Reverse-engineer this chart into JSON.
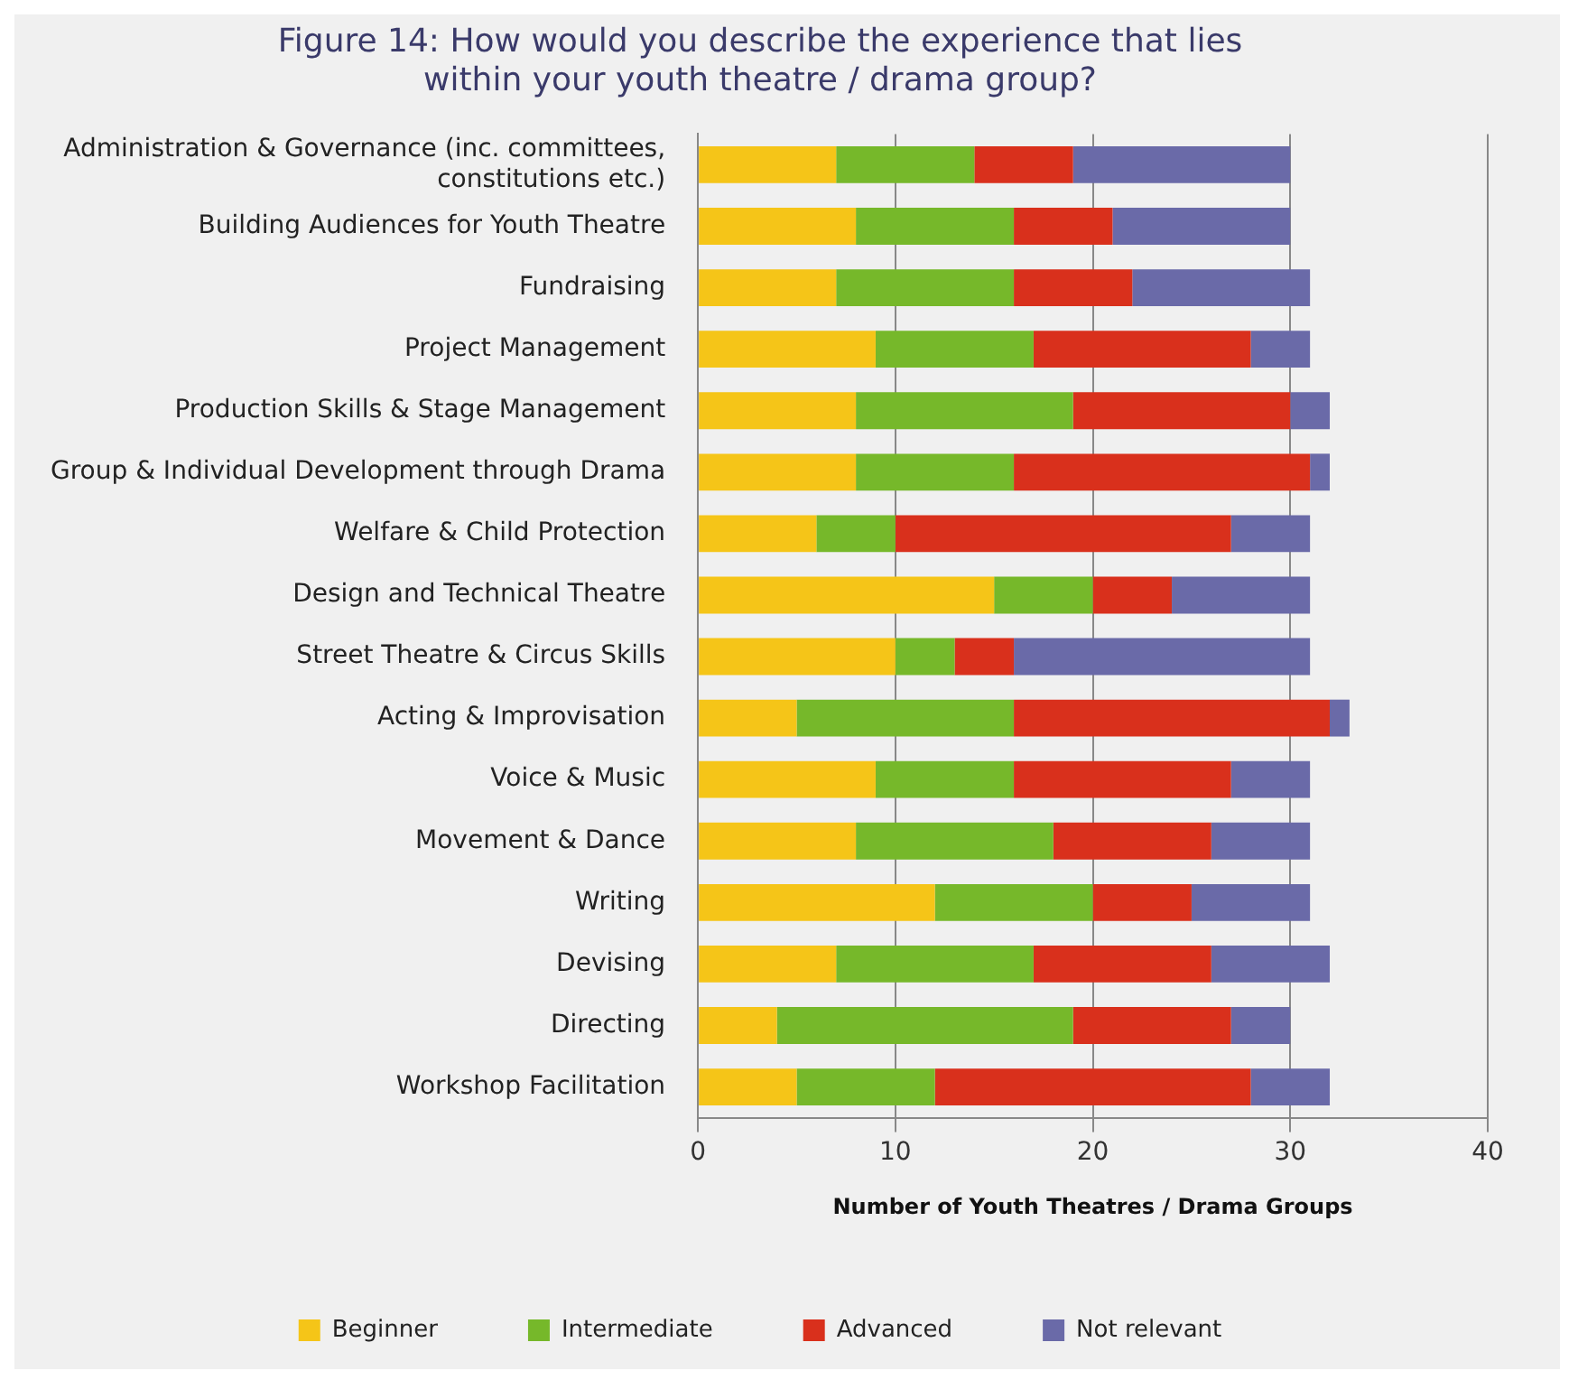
{
  "chart_data": {
    "type": "bar",
    "orientation": "horizontal",
    "stacked": true,
    "title": "Figure 14: How would you describe the experience that lies within your youth theatre / drama group?",
    "xlabel": "Number of Youth Theatres / Drama Groups",
    "categories": [
      "Administration & Governance (inc. committees, constitutions etc.)",
      "Building Audiences for Youth Theatre",
      "Fundraising",
      "Project Management",
      "Production Skills & Stage Management",
      "Group & Individual Development through Drama",
      "Welfare & Child Protection",
      "Design and Technical Theatre",
      "Street Theatre & Circus Skills",
      "Acting & Improvisation",
      "Voice & Music",
      "Movement & Dance",
      "Writing",
      "Devising",
      "Directing",
      "Workshop Facilitation"
    ],
    "series": [
      {
        "name": "Beginner",
        "color": "#f5c518",
        "values": [
          7,
          8,
          7,
          9,
          8,
          8,
          6,
          15,
          10,
          5,
          9,
          8,
          12,
          7,
          4,
          5
        ]
      },
      {
        "name": "Intermediate",
        "color": "#76b82a",
        "values": [
          7,
          8,
          9,
          8,
          11,
          8,
          4,
          5,
          3,
          11,
          7,
          10,
          8,
          10,
          15,
          7
        ]
      },
      {
        "name": "Advanced",
        "color": "#d9301c",
        "values": [
          5,
          5,
          6,
          11,
          11,
          15,
          17,
          4,
          3,
          16,
          11,
          8,
          5,
          9,
          8,
          16
        ]
      },
      {
        "name": "Not relevant",
        "color": "#6a6aa8",
        "values": [
          11,
          9,
          9,
          3,
          2,
          1,
          4,
          7,
          15,
          1,
          4,
          5,
          6,
          6,
          3,
          4
        ]
      }
    ],
    "xlim": [
      0,
      40
    ],
    "xticks": [
      0,
      10,
      20,
      30,
      40
    ],
    "grid": "x",
    "legend": "bottom"
  }
}
